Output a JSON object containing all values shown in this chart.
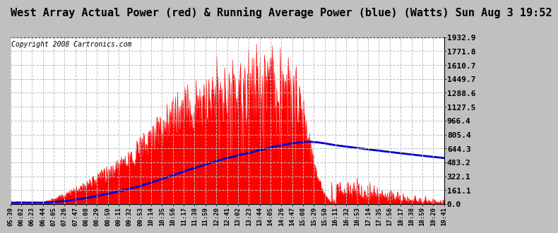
{
  "title": "West Array Actual Power (red) & Running Average Power (blue) (Watts) Sun Aug 3 19:52",
  "copyright": "Copyright 2008 Cartronics.com",
  "y_ticks": [
    0.0,
    161.1,
    322.1,
    483.2,
    644.3,
    805.4,
    966.4,
    1127.5,
    1288.6,
    1449.7,
    1610.7,
    1771.8,
    1932.9
  ],
  "x_labels": [
    "05:39",
    "06:02",
    "06:23",
    "06:44",
    "07:05",
    "07:26",
    "07:47",
    "08:08",
    "08:29",
    "08:50",
    "09:11",
    "09:32",
    "09:53",
    "10:14",
    "10:35",
    "10:56",
    "11:17",
    "11:38",
    "11:59",
    "12:20",
    "12:41",
    "13:02",
    "13:23",
    "13:44",
    "14:05",
    "14:26",
    "14:47",
    "15:08",
    "15:29",
    "15:50",
    "16:11",
    "16:32",
    "16:53",
    "17:14",
    "17:35",
    "17:56",
    "18:17",
    "18:38",
    "18:59",
    "19:20",
    "19:41"
  ],
  "ymax": 1932.9,
  "ymin": 0.0,
  "bg_color": "#c0c0c0",
  "plot_bg_color": "#ffffff",
  "actual_color": "#ff0000",
  "avg_color": "#0000cc",
  "grid_color": "#c0c0c0",
  "title_fontsize": 11,
  "copyright_fontsize": 7
}
